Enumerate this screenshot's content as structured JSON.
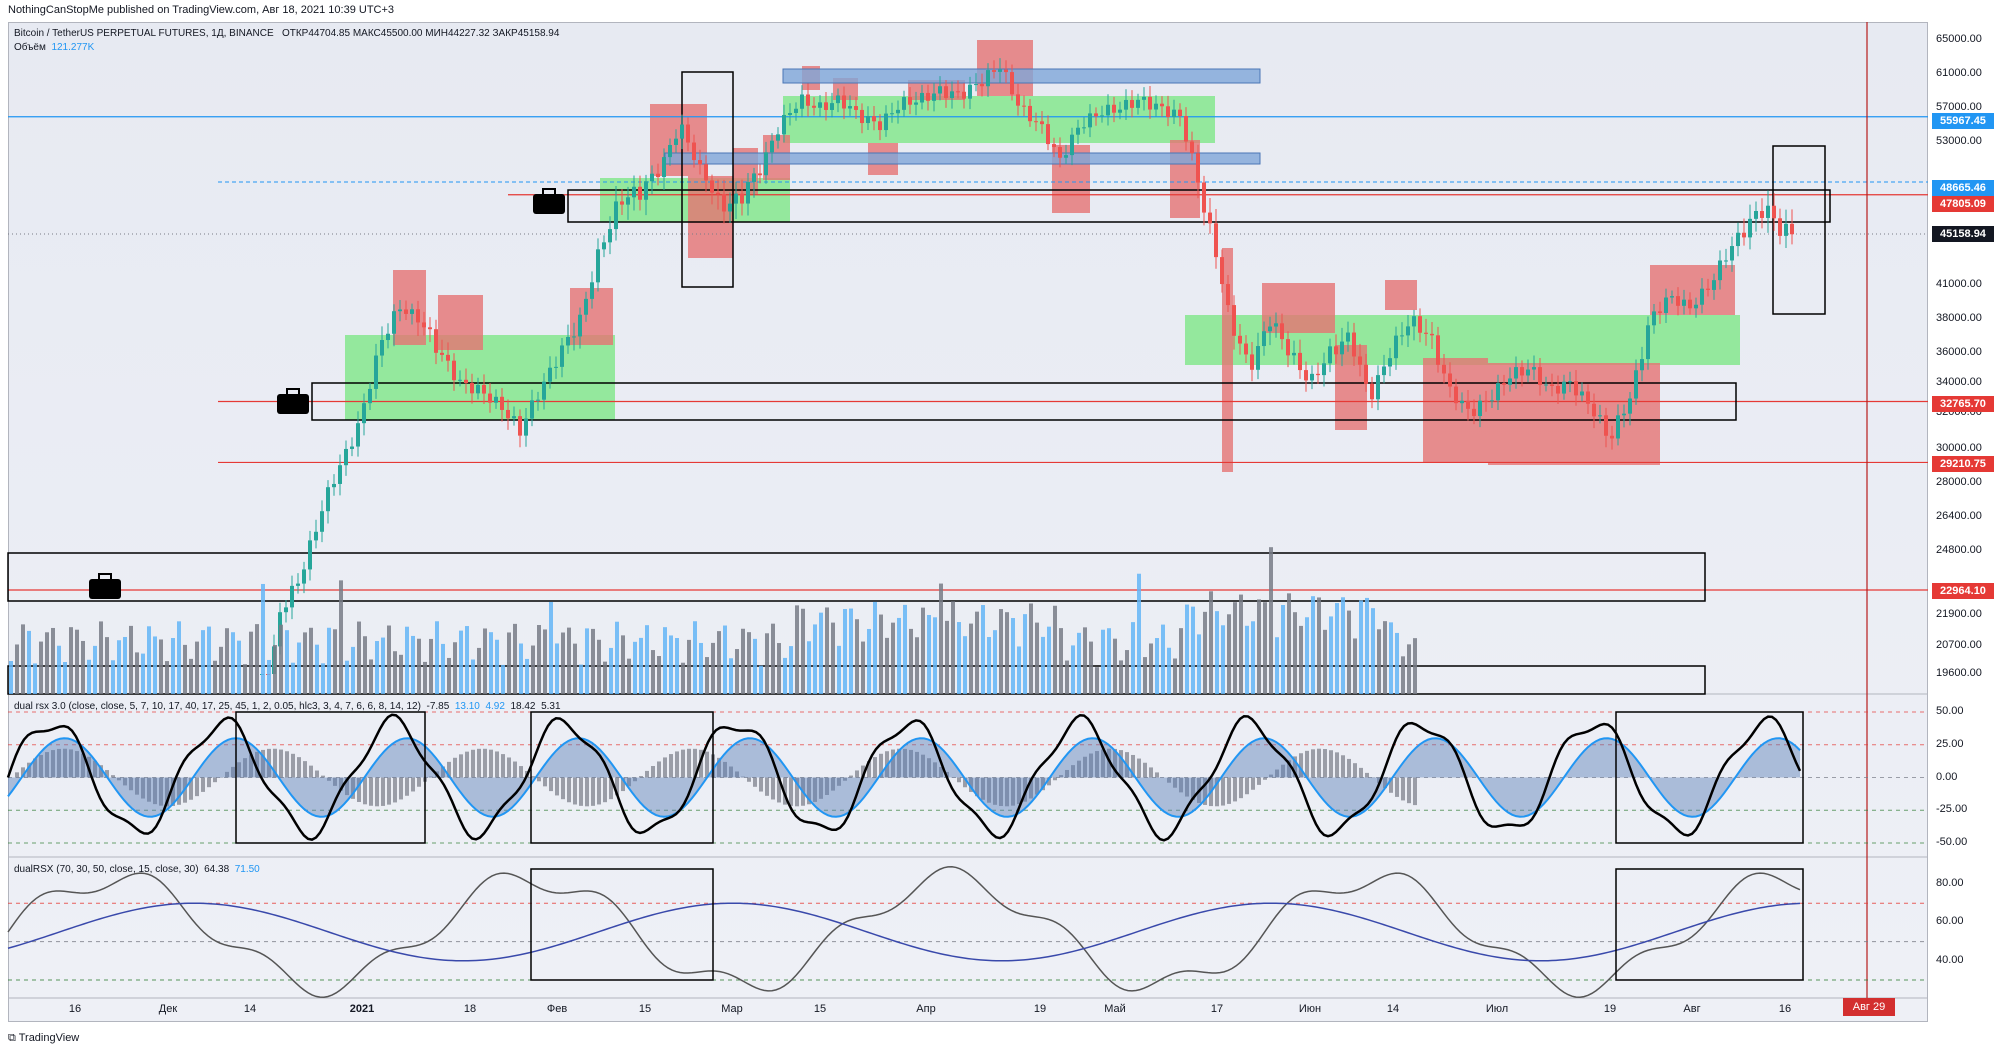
{
  "header": {
    "published_by": "NothingCanStopMe published on TradingView.com, Авг 18, 2021 10:39 UTC+3"
  },
  "main_legend": {
    "symbol": "Bitcoin / TetherUS PERPETUAL FUTURES, 1Д, BINANCE",
    "ohlc": "ОТКР44704.85  МАКС45500.00  МИН44227.32  ЗАКР45158.94",
    "volume_label": "Объём",
    "volume_value": "121.277K"
  },
  "rsx_legend": {
    "name": "dual rsx 3.0 (close, close, 5, 7, 10, 17, 40, 17, 25, 45, 1, 2, 0.05, hlc3, 3, 4, 7, 6, 6, 8, 14, 12)",
    "v1": "-7.85",
    "v2": "13.10",
    "v3": "4.92",
    "v4": "18.42",
    "v5": "5.31"
  },
  "dual_legend": {
    "name": "dualRSX (70, 30, 50, close, 15, close, 30)",
    "v1": "64.38",
    "v2": "71.50"
  },
  "price_ticks": [
    "65000.00",
    "61000.00",
    "57000.00",
    "53000.00",
    "41000.00",
    "38000.00",
    "36000.00",
    "34000.00",
    "32000.00",
    "30000.00",
    "28000.00",
    "26400.00",
    "24800.00",
    "21900.00",
    "20700.00",
    "19600.00"
  ],
  "badges": {
    "blue_level": "55967.45",
    "level_a": "48665.46",
    "level_b": "47805.09",
    "last_price": "45158.94",
    "level_c": "32765.70",
    "level_d": "29210.75",
    "level_e": "22964.10"
  },
  "rsx_ticks": [
    "50.00",
    "25.00",
    "0.00",
    "-25.00",
    "-50.00"
  ],
  "dual_ticks": [
    "80.00",
    "60.00",
    "40.00"
  ],
  "x_labels": [
    "16",
    "Дек",
    "14",
    "2021",
    "18",
    "Фев",
    "15",
    "Мар",
    "15",
    "Апр",
    "19",
    "Май",
    "17",
    "Июн",
    "14",
    "Июл",
    "19",
    "Авг",
    "16"
  ],
  "date_flag": "Авг 29",
  "footer": "TradingView",
  "colors": {
    "bull_zone": "#7ee787",
    "bear_zone": "#e57373",
    "blue_zone": "#7fa6d8",
    "level_line": "#e53935",
    "blue_line": "#2196f3",
    "candle_up": "#26a69a",
    "candle_down": "#ef5350"
  },
  "chart_data": {
    "type": "candlestick",
    "symbol": "BTCUSDT perpetual",
    "timeframe": "1D",
    "xlabel": "",
    "ylabel": "",
    "ylim": [
      18000,
      66000
    ],
    "horizontal_levels": [
      55967.45,
      48665.46,
      47805.09,
      32765.7,
      29210.75,
      22964.1
    ],
    "approx_closes_by_month": [
      {
        "x": "Nov 2020",
        "close": 19000
      },
      {
        "x": "Dec 2020",
        "close": 29000
      },
      {
        "x": "Jan 2021",
        "close": 33000
      },
      {
        "x": "Feb 2021",
        "close": 45000
      },
      {
        "x": "Mar 2021",
        "close": 58000
      },
      {
        "x": "Apr 2021",
        "close": 57000
      },
      {
        "x": "May 2021",
        "close": 37000
      },
      {
        "x": "Jun 2021",
        "close": 35000
      },
      {
        "x": "Jul 2021",
        "close": 41000
      },
      {
        "x": "Aug 2021",
        "close": 45158.94
      }
    ],
    "rsx_ylim": [
      -55,
      55
    ],
    "dual_ylim": [
      25,
      95
    ],
    "dual_levels": [
      70,
      50,
      30
    ]
  }
}
